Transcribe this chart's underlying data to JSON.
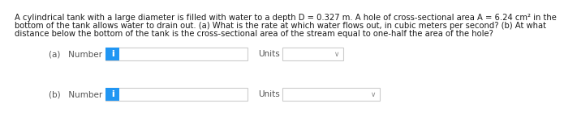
{
  "background_color": "#ffffff",
  "text_color": "#1a1a1a",
  "paragraph_line1": "A cylindrical tank with a large diameter is filled with water to a depth D = 0.327 m. A hole of cross-sectional area A = 6.24 cm² in the",
  "paragraph_line2": "bottom of the tank allows water to drain out. (a) What is the rate at which water flows out, in cubic meters per second? (b) At what",
  "paragraph_line3": "distance below the bottom of the tank is the cross-sectional area of the stream equal to one-half the area of the hole?",
  "row_a_label": "(a)   Number",
  "row_b_label": "(b)   Number",
  "units_label": "Units",
  "info_button_color": "#2196F3",
  "info_button_text": "i",
  "info_button_text_color": "#ffffff",
  "input_box_color": "#ffffff",
  "input_box_border": "#cccccc",
  "dropdown_a_color": "#ffffff",
  "dropdown_a_border": "#cccccc",
  "dropdown_b_color": "#ffffff",
  "dropdown_b_border": "#cccccc",
  "text_font_size": 7.2,
  "label_font_size": 7.5,
  "chevron": "∨",
  "label_color": "#555555"
}
